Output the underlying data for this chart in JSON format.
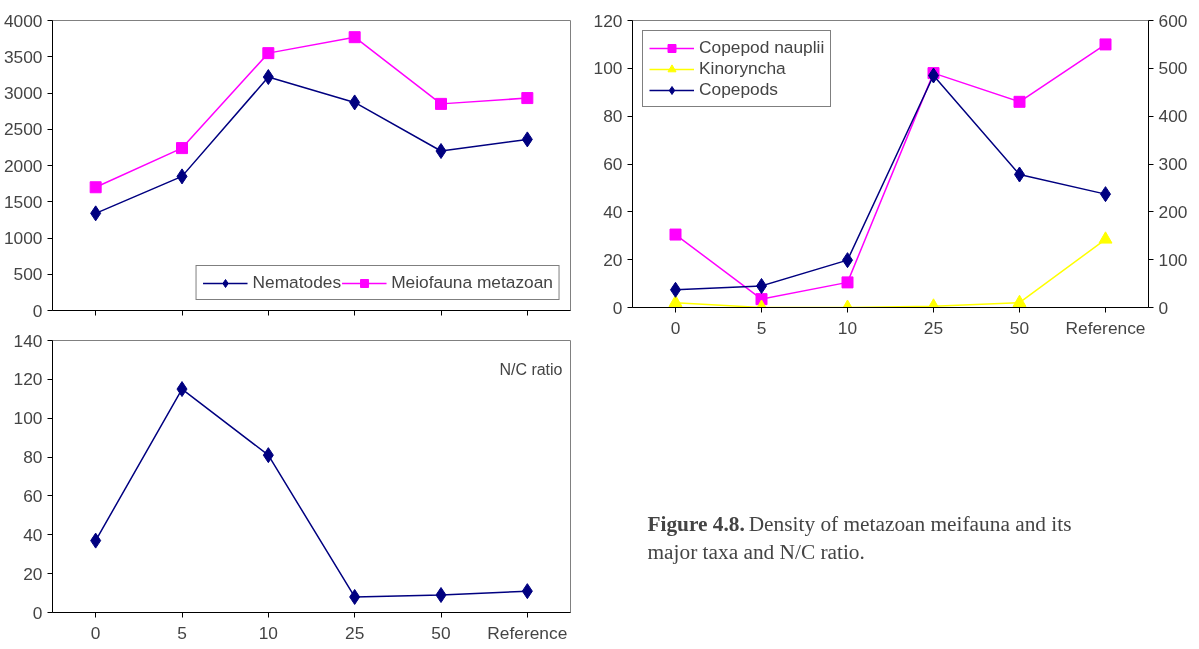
{
  "chart_data": [
    {
      "type": "line",
      "categories": [
        null,
        null,
        null,
        null,
        null,
        null
      ],
      "ylim": [
        0,
        4000
      ],
      "yticks": [
        0,
        500,
        1000,
        1500,
        2000,
        2500,
        3000,
        3500,
        4000
      ],
      "tick_labels": "y",
      "grid": false,
      "legend": "bottom right",
      "series": [
        {
          "name": "Nematodes",
          "color": "#000080",
          "marker": "diamond",
          "values": [
            1340,
            1850,
            3220,
            2870,
            2200,
            2360
          ]
        },
        {
          "name": "Meiofauna metazoan",
          "color": "#ff00ff",
          "marker": "square",
          "values": [
            1700,
            2240,
            3550,
            3770,
            2850,
            2930
          ]
        }
      ]
    },
    {
      "type": "line",
      "categories": [
        "0",
        "5",
        "10",
        "25",
        "50",
        "Reference"
      ],
      "ylim": [
        0,
        120
      ],
      "yticks": [
        0,
        20,
        40,
        60,
        80,
        100,
        120
      ],
      "y2lim": [
        0,
        600
      ],
      "y2ticks": [
        0,
        100,
        200,
        300,
        400,
        500,
        600
      ],
      "grid": false,
      "legend": "top left",
      "series": [
        {
          "name": "Copepod nauplii",
          "color": "#ff00ff",
          "marker": "square",
          "values": [
            30.5,
            3.5,
            10.5,
            98,
            86,
            110
          ]
        },
        {
          "name": "Kinoryncha",
          "color": "#ffff00",
          "marker": "triangle",
          "values": [
            2,
            0,
            0,
            0.5,
            2,
            28.5
          ]
        },
        {
          "name": "Copepods",
          "color": "#000080",
          "marker": "diamond",
          "axis": "y2",
          "values": [
            37,
            45,
            99,
            485,
            278,
            237
          ]
        }
      ]
    },
    {
      "type": "line",
      "categories": [
        "0",
        "5",
        "10",
        "25",
        "50",
        "Reference"
      ],
      "ylim": [
        0,
        140
      ],
      "yticks": [
        0,
        20,
        40,
        60,
        80,
        100,
        120,
        140
      ],
      "grid": false,
      "annotations": [
        "N/C ratio"
      ],
      "series": [
        {
          "color": "#000080",
          "marker": "diamond",
          "values": [
            37,
            115,
            81,
            8,
            9,
            11
          ]
        }
      ]
    },
    {
      "type": "other",
      "annotations": [
        "Figure 4.8.",
        "Density of metazoan meifauna and its major taxa and N/C ratio."
      ]
    }
  ]
}
